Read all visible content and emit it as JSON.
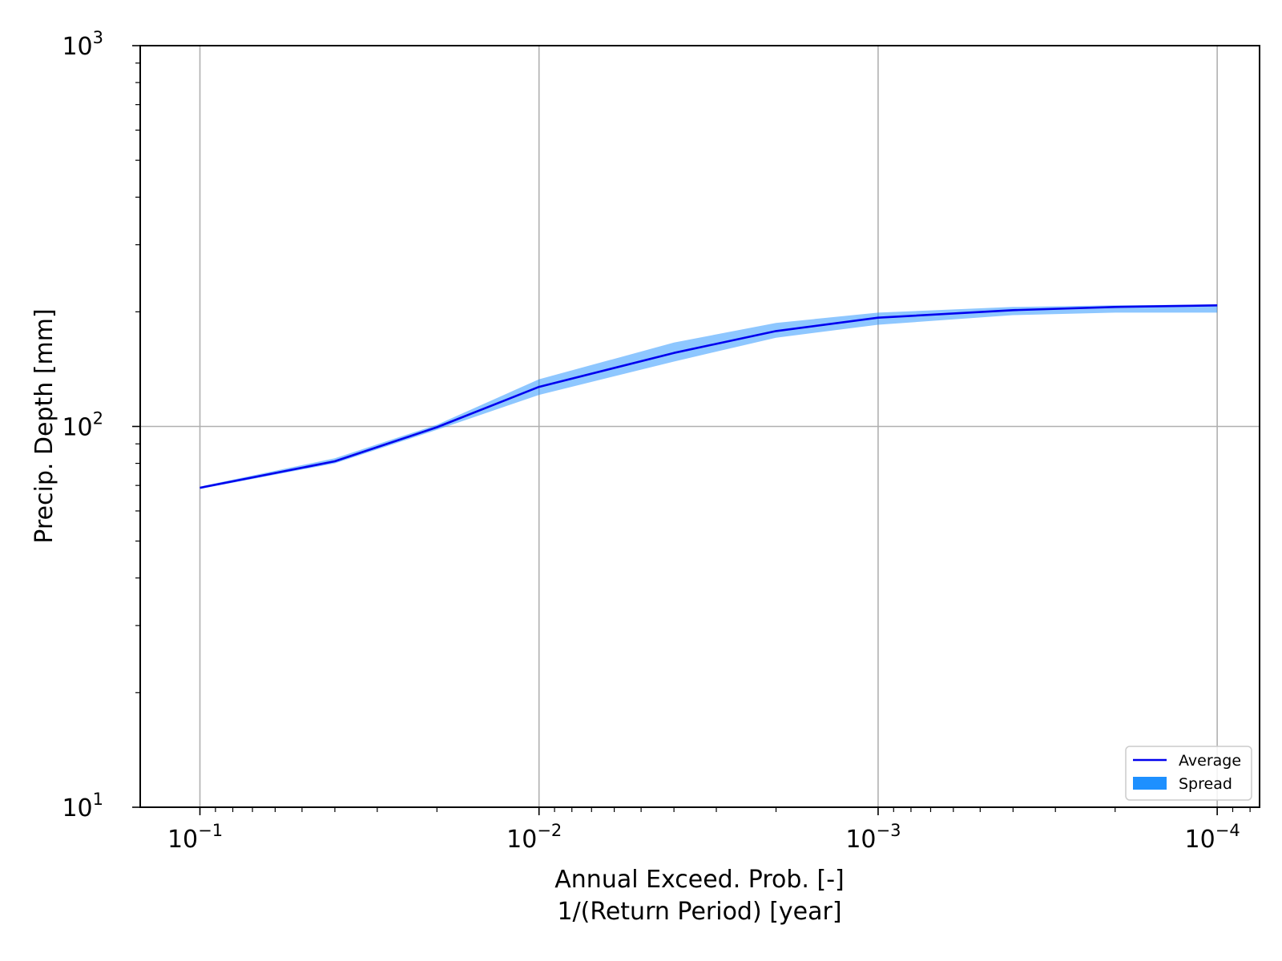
{
  "chart_data": {
    "type": "area",
    "xlabel_line1": "Annual Exceed. Prob. [-]",
    "xlabel_line2": "1/(Return Period) [year]",
    "ylabel": "Precip. Depth [mm]",
    "x_scale": "log",
    "x_reversed": true,
    "y_scale": "log",
    "xlim": [
      0.15,
      7.5e-05
    ],
    "ylim": [
      10,
      1000
    ],
    "x_ticks": [
      {
        "value": 0.1,
        "base": "10",
        "exp": "−1"
      },
      {
        "value": 0.01,
        "base": "10",
        "exp": "−2"
      },
      {
        "value": 0.001,
        "base": "10",
        "exp": "−3"
      },
      {
        "value": 0.0001,
        "base": "10",
        "exp": "−4"
      }
    ],
    "y_ticks": [
      {
        "value": 10,
        "base": "10",
        "exp": "1"
      },
      {
        "value": 100,
        "base": "10",
        "exp": "2"
      },
      {
        "value": 1000,
        "base": "10",
        "exp": "3"
      }
    ],
    "grid": true,
    "legend_position": "lower-right",
    "series": [
      {
        "name": "Average",
        "kind": "line",
        "color": "#0000ee",
        "x": [
          0.1,
          0.04,
          0.02,
          0.01,
          0.004,
          0.002,
          0.001,
          0.0004,
          0.0002,
          0.0001
        ],
        "values": [
          69,
          81,
          99.5,
          127,
          156,
          178,
          193,
          202,
          206,
          208
        ]
      },
      {
        "name": "Spread",
        "kind": "band",
        "color": "#1e90ff",
        "x": [
          0.1,
          0.04,
          0.02,
          0.01,
          0.004,
          0.002,
          0.001,
          0.0004,
          0.0002,
          0.0001
        ],
        "lower": [
          68.5,
          80,
          98,
          121,
          148,
          171,
          185,
          196,
          199,
          199
        ],
        "upper": [
          69.5,
          82.5,
          101,
          133,
          166,
          187,
          199,
          206,
          208,
          209
        ]
      }
    ]
  }
}
